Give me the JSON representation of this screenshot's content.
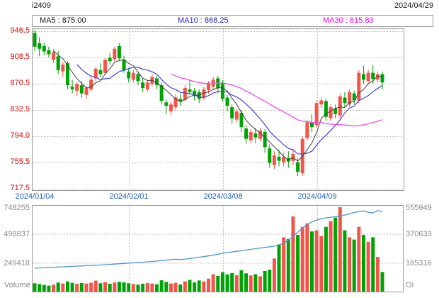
{
  "header": {
    "symbol": "i2409",
    "date": "2024/04/29"
  },
  "legend": {
    "ma5_label": "MA5 : 875.00",
    "ma10_label": "MA10 : 868.25",
    "ma30_label": "MA30 : 815.83"
  },
  "main_chart": {
    "y_labels": [
      "946.5",
      "908.5",
      "870.5",
      "832.5",
      "794.0",
      "755.5",
      "717.5"
    ],
    "x_labels": [
      "2024/01/04",
      "2024/02/01",
      "2024/03/08",
      "2024/04/09"
    ],
    "y_max": 946.5,
    "y_min": 717.5
  },
  "volume_panel": {
    "left_labels": [
      "748255",
      "498837",
      "249418"
    ],
    "right_labels": [
      "555949",
      "370633",
      "185316"
    ],
    "left_title": "Volume",
    "right_title": "OI",
    "vol_axis_max": 748255,
    "oi_axis_max": 555949
  },
  "colors": {
    "up_red": "#f4554b",
    "down_green": "#00a305",
    "ma5": "#3f3f3f",
    "ma10": "#4040dd",
    "ma30": "#ee55ee",
    "oi_line": "#4d96d2",
    "grid": "#c0c0c0",
    "border": "#999999"
  },
  "chart_data": {
    "type": "candlestick+volume",
    "title": "i2409 daily K-line with MA5/MA10/MA30, Volume and Open Interest",
    "x_label_indices": [
      0,
      20,
      40,
      60
    ],
    "candles": [
      [
        944,
        949,
        918,
        924
      ],
      [
        929,
        938,
        910,
        921
      ],
      [
        925,
        930,
        912,
        917
      ],
      [
        919,
        924,
        908,
        913
      ],
      [
        905,
        920,
        900,
        916
      ],
      [
        910,
        918,
        884,
        890
      ],
      [
        888,
        902,
        880,
        898
      ],
      [
        900,
        903,
        862,
        868
      ],
      [
        866,
        876,
        856,
        862
      ],
      [
        860,
        872,
        852,
        870
      ],
      [
        868,
        874,
        850,
        856
      ],
      [
        854,
        866,
        848,
        864
      ],
      [
        862,
        880,
        858,
        876
      ],
      [
        878,
        895,
        874,
        892
      ],
      [
        890,
        900,
        880,
        884
      ],
      [
        886,
        908,
        884,
        905
      ],
      [
        908,
        915,
        898,
        903
      ],
      [
        906,
        924,
        902,
        921
      ],
      [
        925,
        929,
        903,
        907
      ],
      [
        905,
        911,
        886,
        890
      ],
      [
        888,
        893,
        872,
        878
      ],
      [
        876,
        890,
        872,
        886
      ],
      [
        884,
        888,
        868,
        874
      ],
      [
        872,
        878,
        858,
        864
      ],
      [
        862,
        876,
        858,
        872
      ],
      [
        870,
        884,
        866,
        880
      ],
      [
        878,
        882,
        862,
        868
      ],
      [
        868,
        872,
        840,
        845
      ],
      [
        843,
        848,
        826,
        838
      ],
      [
        830,
        844,
        824,
        840
      ],
      [
        836,
        854,
        832,
        850
      ],
      [
        848,
        856,
        838,
        845
      ],
      [
        847,
        868,
        844,
        864
      ],
      [
        862,
        876,
        854,
        858
      ],
      [
        860,
        864,
        846,
        852
      ],
      [
        858,
        862,
        842,
        848
      ],
      [
        850,
        866,
        846,
        862
      ],
      [
        861,
        874,
        856,
        871
      ],
      [
        866,
        880,
        862,
        876
      ],
      [
        878,
        882,
        856,
        864
      ],
      [
        872,
        876,
        844,
        848
      ],
      [
        850,
        854,
        830,
        838
      ],
      [
        836,
        840,
        812,
        820
      ],
      [
        818,
        834,
        814,
        830
      ],
      [
        828,
        832,
        800,
        807
      ],
      [
        805,
        810,
        783,
        790
      ],
      [
        788,
        804,
        784,
        800
      ],
      [
        798,
        806,
        784,
        792
      ],
      [
        790,
        806,
        786,
        802
      ],
      [
        800,
        804,
        770,
        778
      ],
      [
        776,
        782,
        748,
        755
      ],
      [
        752,
        772,
        746,
        766
      ],
      [
        764,
        774,
        750,
        758
      ],
      [
        756,
        770,
        750,
        764
      ],
      [
        762,
        772,
        748,
        757
      ],
      [
        758,
        776,
        752,
        768
      ],
      [
        756,
        762,
        736,
        742
      ],
      [
        740,
        794,
        736,
        790
      ],
      [
        791,
        818,
        788,
        814
      ],
      [
        814,
        826,
        800,
        807
      ],
      [
        810,
        846,
        806,
        842
      ],
      [
        840,
        850,
        834,
        846
      ],
      [
        845,
        848,
        816,
        822
      ],
      [
        820,
        840,
        816,
        836
      ],
      [
        834,
        840,
        820,
        826
      ],
      [
        824,
        856,
        820,
        852
      ],
      [
        850,
        858,
        836,
        842
      ],
      [
        840,
        862,
        836,
        858
      ],
      [
        856,
        860,
        840,
        846
      ],
      [
        846,
        890,
        842,
        886
      ],
      [
        884,
        896,
        870,
        876
      ],
      [
        874,
        890,
        872,
        886
      ],
      [
        886,
        897,
        870,
        877
      ],
      [
        876,
        888,
        872,
        884
      ],
      [
        884,
        888,
        862,
        872
      ]
    ],
    "volumes": [
      72000,
      65000,
      58000,
      52000,
      61000,
      78000,
      70000,
      88000,
      76000,
      68000,
      74000,
      70000,
      76000,
      95000,
      72000,
      82000,
      68000,
      78000,
      85000,
      80000,
      72000,
      66000,
      60000,
      68000,
      74000,
      70000,
      64000,
      98000,
      84000,
      70000,
      76000,
      62000,
      88000,
      102000,
      80000,
      96000,
      88000,
      112000,
      150000,
      135000,
      168000,
      148000,
      160000,
      142000,
      185000,
      158000,
      140000,
      150000,
      132000,
      178000,
      190000,
      286000,
      408000,
      470000,
      455000,
      650000,
      490000,
      560000,
      590000,
      520000,
      530000,
      480000,
      560000,
      610000,
      640000,
      730000,
      530000,
      470000,
      450000,
      560000,
      490000,
      430000,
      470000,
      300000,
      170000
    ],
    "open_interest": [
      150000,
      152000,
      153000,
      155000,
      156000,
      158000,
      159000,
      161000,
      162000,
      164000,
      165000,
      167000,
      168000,
      170000,
      171000,
      173000,
      175000,
      177000,
      179000,
      181000,
      183000,
      185000,
      187000,
      189000,
      191000,
      193000,
      196000,
      199000,
      203000,
      206000,
      208000,
      206000,
      209000,
      213000,
      217000,
      221000,
      225000,
      229000,
      234000,
      240000,
      246000,
      251000,
      255000,
      259000,
      263000,
      267000,
      271000,
      276000,
      280000,
      284000,
      287000,
      292000,
      300000,
      312000,
      330000,
      355000,
      382000,
      408000,
      430000,
      448000,
      460000,
      468000,
      474000,
      478000,
      481000,
      484000,
      492000,
      500000,
      508000,
      514000,
      518000,
      510000,
      505000,
      521000,
      512000
    ]
  }
}
